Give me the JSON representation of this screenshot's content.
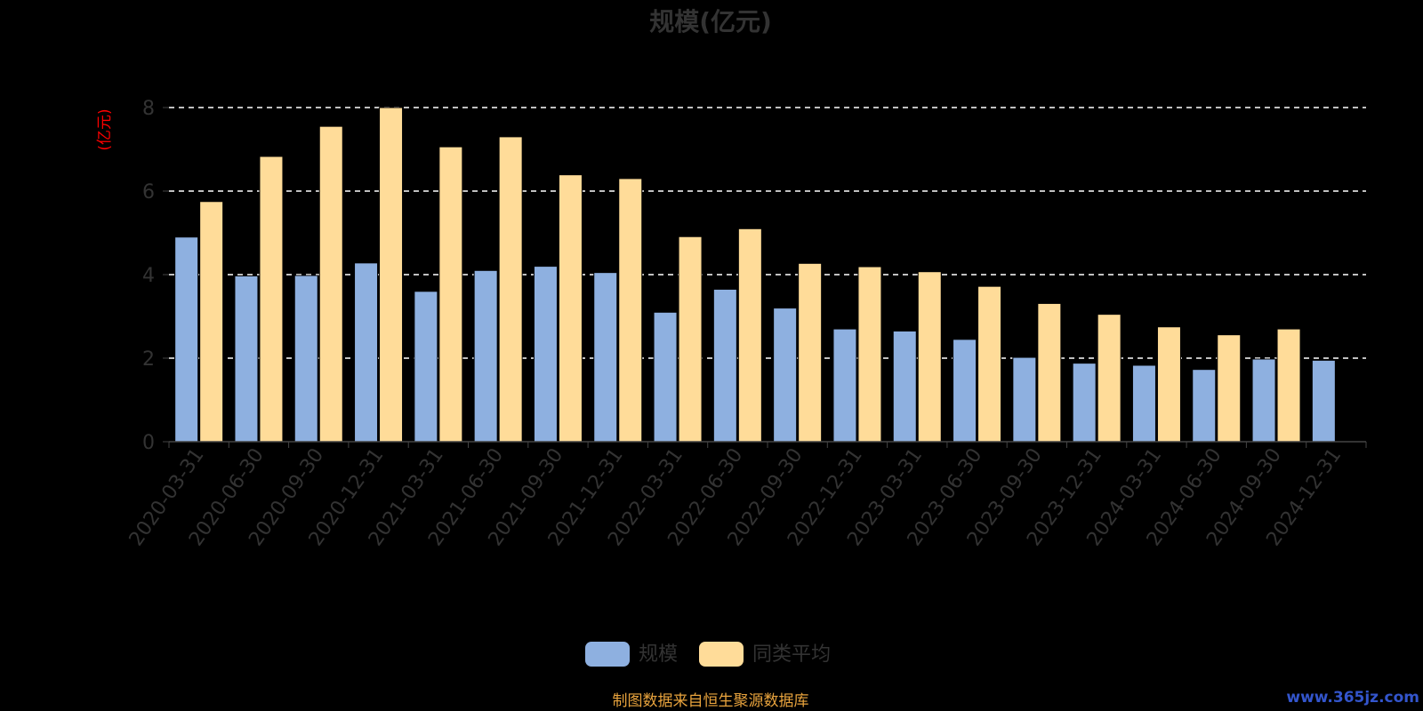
{
  "chart_data": {
    "type": "bar",
    "title": "规模(亿元)",
    "ylabel": "(亿元)",
    "ylim": [
      0,
      8
    ],
    "yticks": [
      "0",
      "2",
      "4",
      "6",
      "8"
    ],
    "grid": true,
    "legend_position": "bottom",
    "categories": [
      "2020-03-31",
      "2020-06-30",
      "2020-09-30",
      "2020-12-31",
      "2021-03-31",
      "2021-06-30",
      "2021-09-30",
      "2021-12-31",
      "2022-03-31",
      "2022-06-30",
      "2022-09-30",
      "2022-12-31",
      "2023-03-31",
      "2023-06-30",
      "2023-09-30",
      "2023-12-31",
      "2024-03-31",
      "2024-06-30",
      "2024-09-30",
      "2024-12-31"
    ],
    "series": [
      {
        "name": "规模",
        "color": "#8eb0e0",
        "values": [
          4.9,
          3.97,
          3.98,
          4.28,
          3.6,
          4.1,
          4.2,
          4.05,
          3.1,
          3.65,
          3.2,
          2.7,
          2.65,
          2.45,
          2.02,
          1.88,
          1.83,
          1.73,
          1.98,
          1.95
        ]
      },
      {
        "name": "同类平均",
        "color": "#ffdc99",
        "values": [
          5.75,
          6.83,
          7.55,
          8.0,
          7.06,
          7.3,
          6.39,
          6.3,
          4.91,
          5.1,
          4.27,
          4.19,
          4.07,
          3.72,
          3.31,
          3.05,
          2.75,
          2.56,
          2.7,
          null
        ]
      }
    ],
    "colors": {
      "background": "#000000",
      "title": "#333333",
      "axis_text": "#333333",
      "axis_line": "#444444",
      "grid_line": "#ffffff",
      "unit_label": "#ff0000",
      "footer": "#e8a33d",
      "watermark": "#3355cc"
    }
  },
  "footer": {
    "source_text": "制图数据来自恒生聚源数据库"
  },
  "watermark": {
    "text": "www.365jz.com"
  }
}
